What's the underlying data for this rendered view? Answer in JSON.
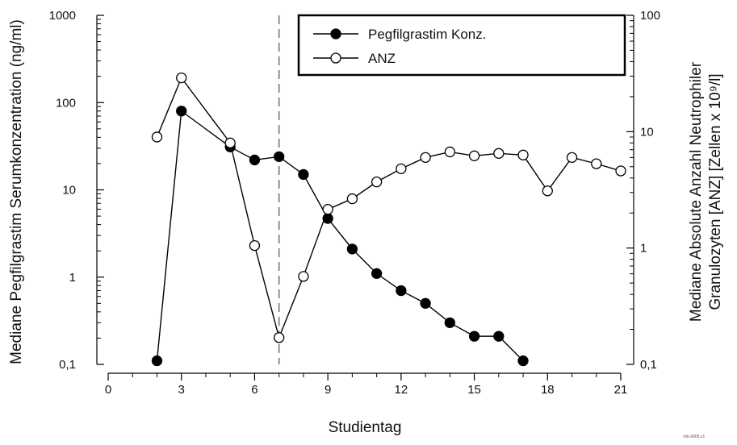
{
  "chart_data": {
    "type": "line",
    "title": "",
    "xlabel": "Studientag",
    "ylabel_left": "Mediane Pegfilgrastim Serumkonzentration (ng/ml)",
    "ylabel_right_line1": "Mediane Absolute Anzahl Neutrophiler",
    "ylabel_right_line2": "Granulozyten [ANZ] [Zellen x 10⁹/l]",
    "xlim": [
      0,
      21
    ],
    "x_ticks": [
      0,
      3,
      6,
      9,
      12,
      15,
      18,
      21
    ],
    "x_tick_labels": [
      "0",
      "3",
      "6",
      "9",
      "12",
      "15",
      "18",
      "21"
    ],
    "y_left_scale": "log",
    "y_left_lim": [
      0.1,
      1000
    ],
    "y_left_ticks": [
      0.1,
      1,
      10,
      100,
      1000
    ],
    "y_left_tick_labels": [
      "0,1",
      "1",
      "10",
      "100",
      "1000"
    ],
    "y_right_scale": "log",
    "y_right_lim": [
      0.1,
      100
    ],
    "y_right_ticks": [
      0.1,
      1,
      10,
      100
    ],
    "y_right_tick_labels": [
      "0,1",
      "1",
      "10",
      "100"
    ],
    "vertical_reference_line_x": 7,
    "grid": false,
    "legend_position": "top-right",
    "series": [
      {
        "name": "Pegfilgrastim Konz.",
        "axis": "left",
        "marker": "filled-circle",
        "color": "#000000",
        "x": [
          2,
          3,
          5,
          6,
          7,
          8,
          9,
          10,
          11,
          12,
          13,
          14,
          15,
          16,
          17
        ],
        "y": [
          0.11,
          80,
          31,
          22,
          24,
          15,
          4.7,
          2.1,
          1.1,
          0.7,
          0.5,
          0.3,
          0.21,
          0.21,
          0.11
        ]
      },
      {
        "name": "ANZ",
        "axis": "right",
        "marker": "open-circle",
        "color": "#000000",
        "x": [
          2,
          3,
          5,
          6,
          7,
          8,
          9,
          10,
          11,
          12,
          13,
          14,
          15,
          16,
          17,
          18,
          19,
          20,
          21
        ],
        "y": [
          9,
          29,
          8,
          1.05,
          0.17,
          0.57,
          2.15,
          2.65,
          3.7,
          4.8,
          6.0,
          6.7,
          6.2,
          6.5,
          6.3,
          3.1,
          6.0,
          5.3,
          4.6
        ]
      }
    ],
    "footnote": "chk-0005.v1"
  }
}
